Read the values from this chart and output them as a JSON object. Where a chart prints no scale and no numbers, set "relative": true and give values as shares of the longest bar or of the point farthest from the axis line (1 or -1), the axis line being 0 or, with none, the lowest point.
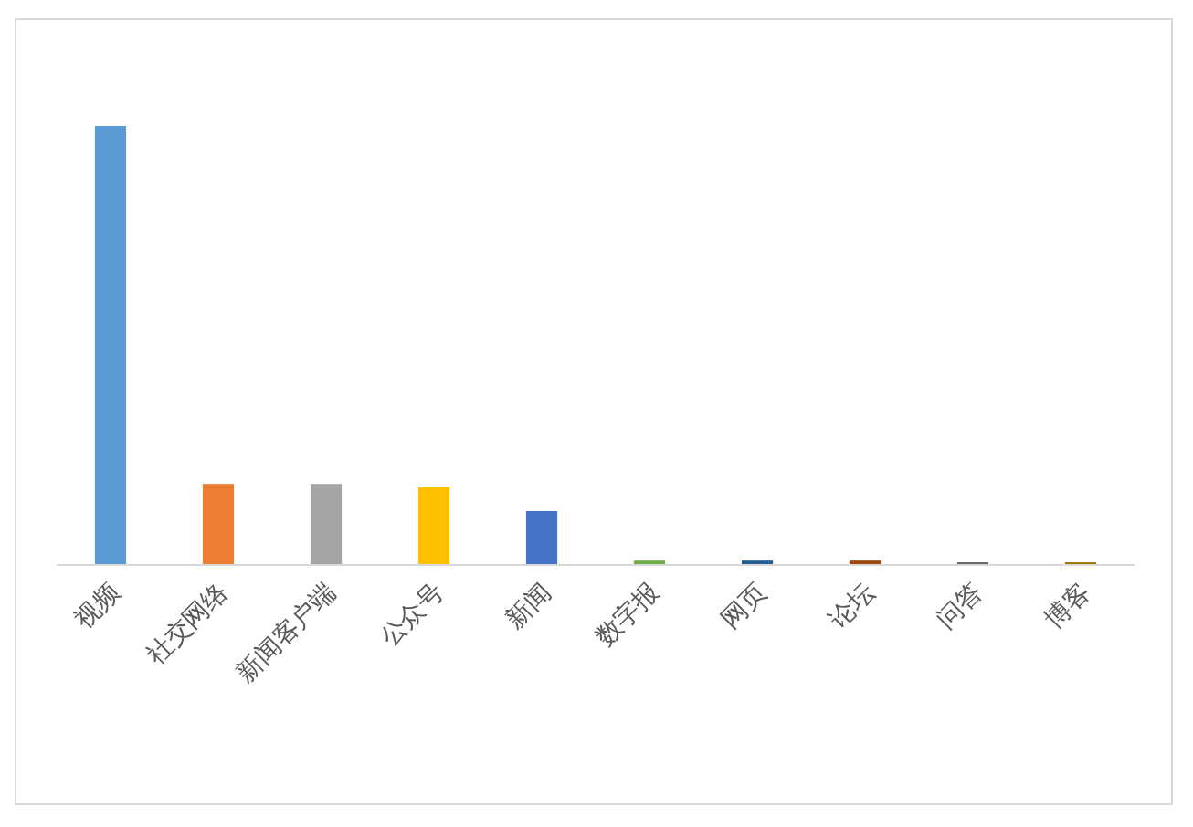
{
  "chart_data": {
    "type": "bar",
    "categories": [
      "视频",
      "社交网络",
      "新闻客户端",
      "公众号",
      "新闻",
      "数字报",
      "网页",
      "论坛",
      "问答",
      "博客"
    ],
    "values": [
      1,
      0.183,
      0.183,
      0.175,
      0.121,
      0.008,
      0.008,
      0.008,
      0.004,
      0.004
    ],
    "colors": [
      "#5b9bd5",
      "#ed7d31",
      "#a5a5a5",
      "#ffc000",
      "#4472c4",
      "#70ad47",
      "#255e91",
      "#9e480e",
      "#636363",
      "#997300"
    ],
    "relative": true
  }
}
